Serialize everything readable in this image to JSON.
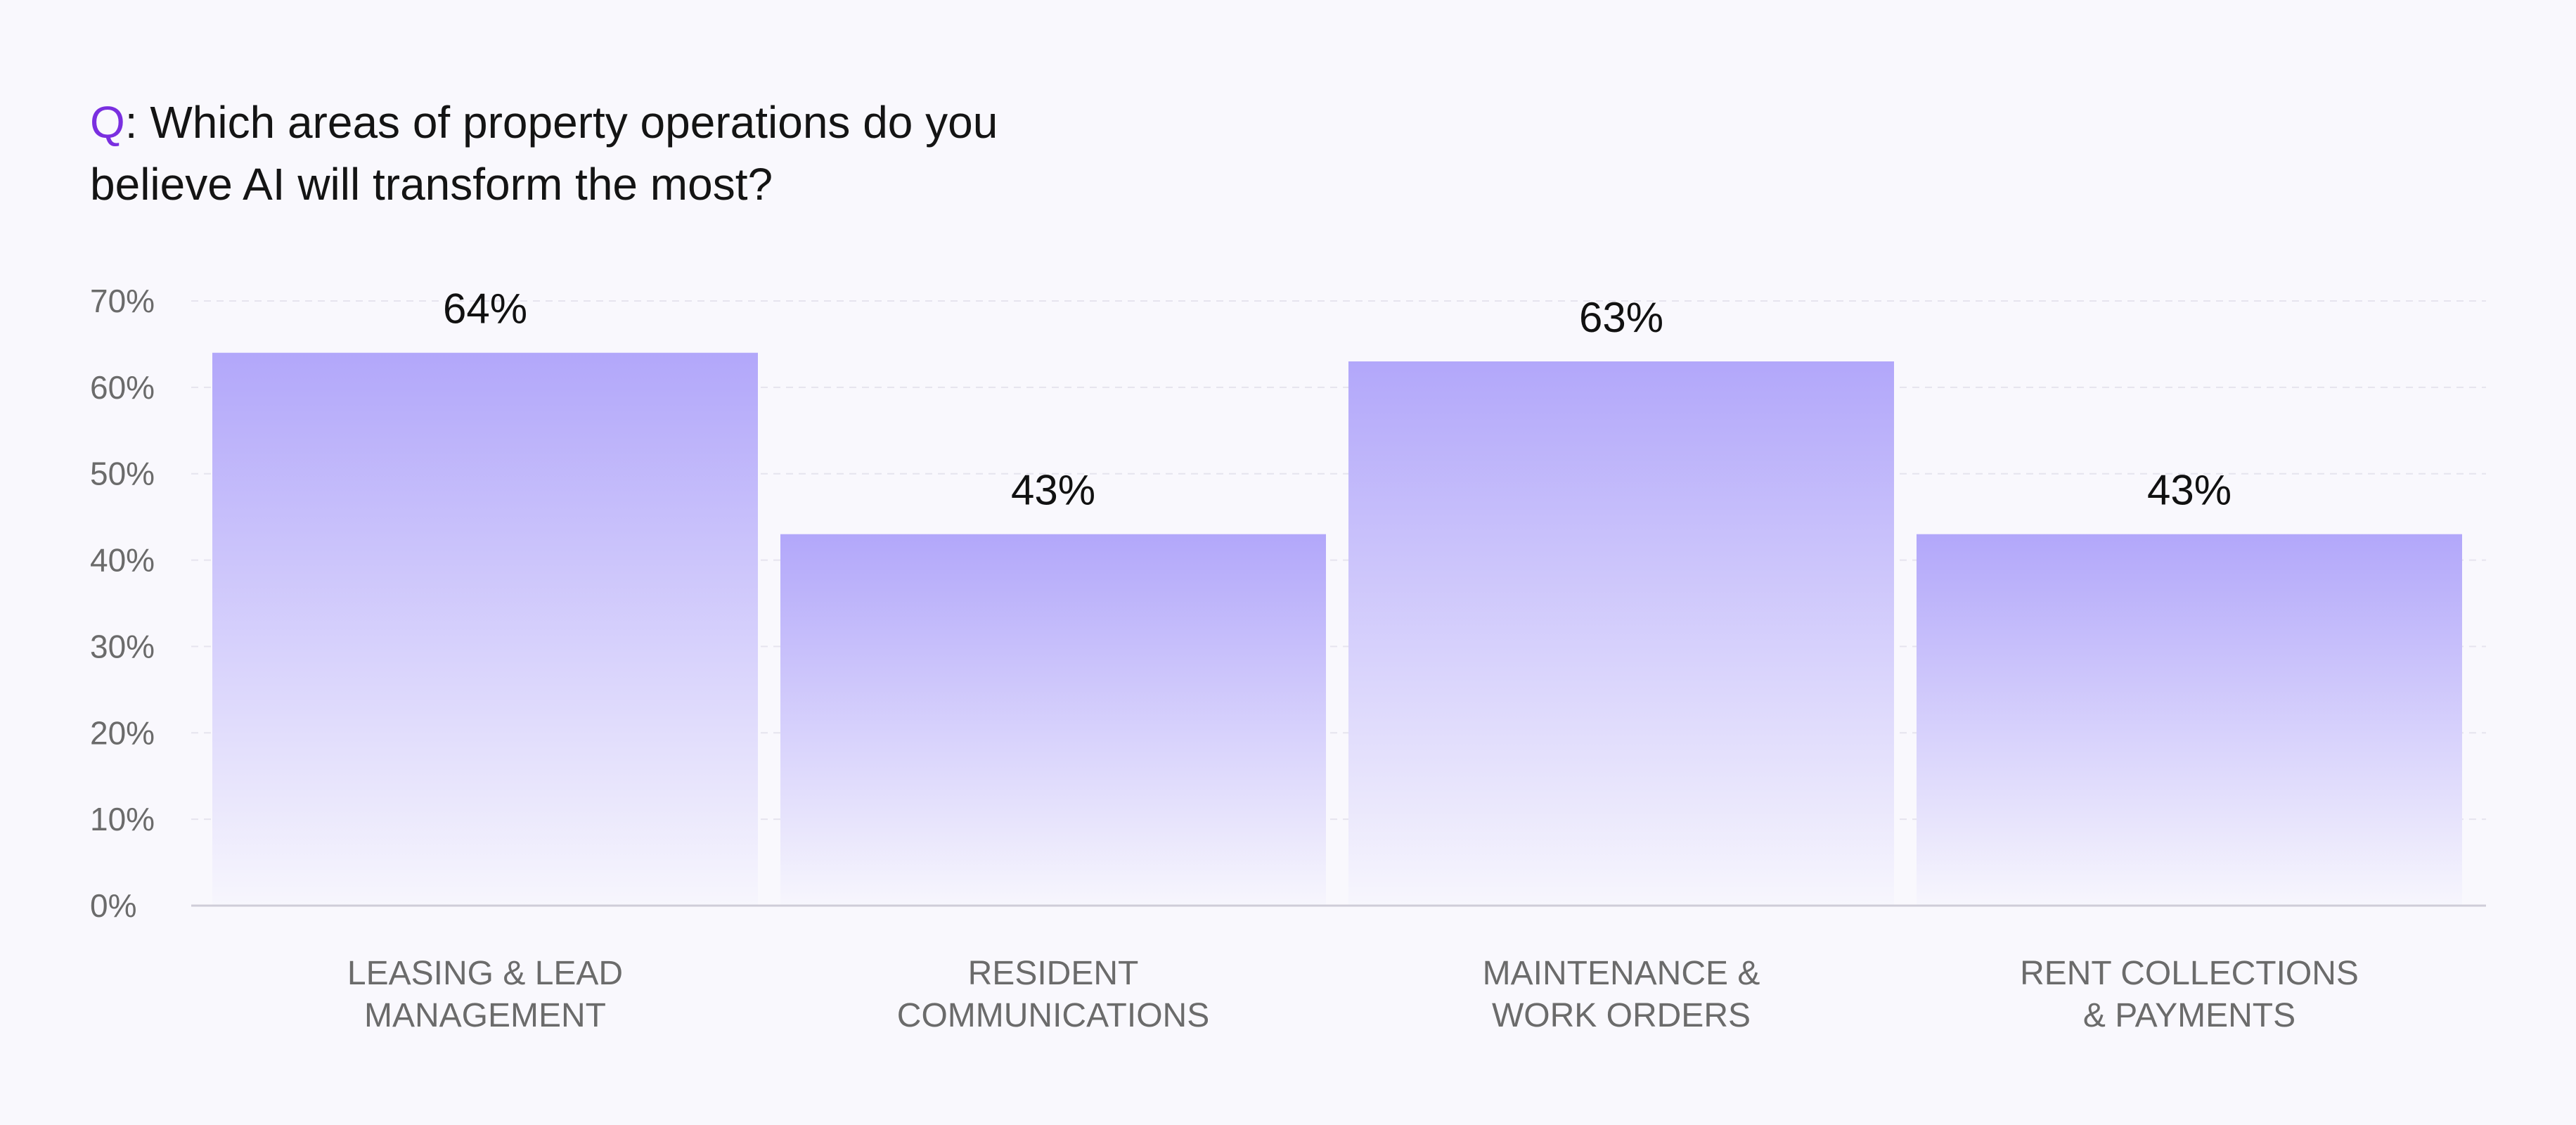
{
  "title": {
    "prefix": "Q",
    "text": ": Which areas of property operations do you believe AI will transform the most?"
  },
  "chart_data": {
    "type": "bar",
    "categories": [
      [
        "LEASING & LEAD",
        "MANAGEMENT"
      ],
      [
        "RESIDENT",
        "COMMUNICATIONS"
      ],
      [
        "MAINTENANCE &",
        "WORK ORDERS"
      ],
      [
        "RENT COLLECTIONS",
        "& PAYMENTS"
      ]
    ],
    "values": [
      64,
      43,
      63,
      43
    ],
    "data_labels": [
      "64%",
      "43%",
      "63%",
      "43%"
    ],
    "y_ticks": [
      0,
      10,
      20,
      30,
      40,
      50,
      60,
      70
    ],
    "y_tick_labels": [
      "0%",
      "10%",
      "20%",
      "30%",
      "40%",
      "50%",
      "60%",
      "70%"
    ],
    "ylim": [
      0,
      70
    ],
    "xlabel": "",
    "ylabel": "",
    "grid": true,
    "legend": "none",
    "colors": {
      "bar_top": "#b2a7fa",
      "bar_bottom": "#f7f6fd",
      "prefix_accent": "#7a2fe0",
      "grid": "#e6e4ee",
      "axis": "#cfcdd8"
    }
  }
}
